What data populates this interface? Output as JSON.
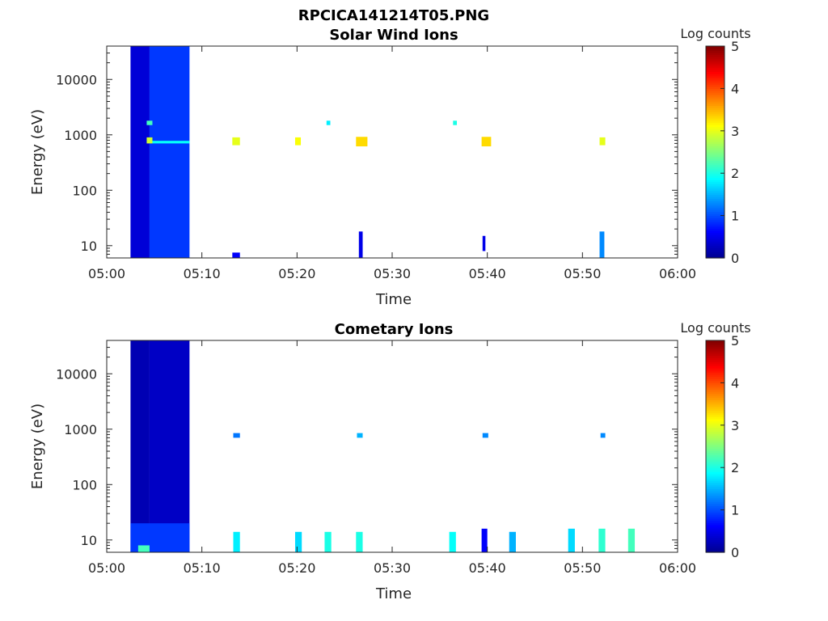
{
  "figure_title": "RPCICA141214T05.PNG",
  "colorbar_label": "Log counts",
  "colorbar_ticks": [
    "0",
    "1",
    "2",
    "3",
    "4",
    "5"
  ],
  "colormap": [
    "#00008f",
    "#0000ff",
    "#0080ff",
    "#00ffff",
    "#80ff80",
    "#ffff00",
    "#ff8000",
    "#ff0000",
    "#800000"
  ],
  "chart_data": [
    {
      "type": "heatmap",
      "title": "Solar Wind Ions",
      "xlabel": "Time",
      "ylabel": "Energy (eV)",
      "x_ticks": [
        "05:00",
        "05:10",
        "05:20",
        "05:30",
        "05:40",
        "05:50",
        "06:00"
      ],
      "y_ticks": [
        "10",
        "100",
        "1000",
        "10000"
      ],
      "y_scale": "log",
      "xlim": [
        "05:00",
        "06:00"
      ],
      "ylim": [
        6,
        40000
      ],
      "clim": [
        0,
        5
      ],
      "cells": [
        {
          "t0": "05:02.5",
          "t1": "05:04.5",
          "e_lo": 6,
          "e_hi": 40000,
          "v": 0.4
        },
        {
          "t0": "05:04.5",
          "t1": "05:08.7",
          "e_lo": 6,
          "e_hi": 40000,
          "v": 0.9
        },
        {
          "t0": "05:04.2",
          "t1": "05:04.8",
          "e_lo": 700,
          "e_hi": 900,
          "v": 2.9
        },
        {
          "t0": "05:04.2",
          "t1": "05:04.8",
          "e_lo": 1500,
          "e_hi": 1800,
          "v": 2.2
        },
        {
          "t0": "05:04.8",
          "t1": "05:08.7",
          "e_lo": 700,
          "e_hi": 780,
          "v": 1.9
        },
        {
          "t0": "05:13.2",
          "t1": "05:14.0",
          "e_lo": 650,
          "e_hi": 900,
          "v": 3.0
        },
        {
          "t0": "05:13.2",
          "t1": "05:14.0",
          "e_lo": 6,
          "e_hi": 7.5,
          "v": 0.6
        },
        {
          "t0": "05:19.8",
          "t1": "05:20.4",
          "e_lo": 650,
          "e_hi": 900,
          "v": 3.1
        },
        {
          "t0": "05:26.2",
          "t1": "05:27.4",
          "e_lo": 620,
          "e_hi": 920,
          "v": 3.3
        },
        {
          "t0": "05:26.5",
          "t1": "05:26.9",
          "e_lo": 6,
          "e_hi": 18,
          "v": 0.5
        },
        {
          "t0": "05:39.4",
          "t1": "05:40.4",
          "e_lo": 620,
          "e_hi": 920,
          "v": 3.3
        },
        {
          "t0": "05:39.5",
          "t1": "05:39.8",
          "e_lo": 8,
          "e_hi": 15,
          "v": 0.5
        },
        {
          "t0": "05:51.8",
          "t1": "05:52.4",
          "e_lo": 650,
          "e_hi": 900,
          "v": 3.0
        },
        {
          "t0": "05:51.8",
          "t1": "05:52.3",
          "e_lo": 6,
          "e_hi": 18,
          "v": 1.3
        },
        {
          "t0": "05:36.4",
          "t1": "05:36.8",
          "e_lo": 1500,
          "e_hi": 1800,
          "v": 2.0
        },
        {
          "t0": "05:23.1",
          "t1": "05:23.5",
          "e_lo": 1500,
          "e_hi": 1800,
          "v": 1.8
        }
      ]
    },
    {
      "type": "heatmap",
      "title": "Cometary Ions",
      "xlabel": "Time",
      "ylabel": "Energy (eV)",
      "x_ticks": [
        "05:00",
        "05:10",
        "05:20",
        "05:30",
        "05:40",
        "05:50",
        "06:00"
      ],
      "y_ticks": [
        "10",
        "100",
        "1000",
        "10000"
      ],
      "y_scale": "log",
      "xlim": [
        "05:00",
        "06:00"
      ],
      "ylim": [
        6,
        40000
      ],
      "clim": [
        0,
        5
      ],
      "cells": [
        {
          "t0": "05:02.5",
          "t1": "05:04.5",
          "e_lo": 6,
          "e_hi": 40000,
          "v": 0.2
        },
        {
          "t0": "05:04.5",
          "t1": "05:08.7",
          "e_lo": 6,
          "e_hi": 40000,
          "v": 0.3
        },
        {
          "t0": "05:02.5",
          "t1": "05:08.7",
          "e_lo": 6,
          "e_hi": 20,
          "v": 0.9
        },
        {
          "t0": "05:03.3",
          "t1": "05:04.5",
          "e_lo": 6,
          "e_hi": 8,
          "v": 2.2
        },
        {
          "t0": "05:13.3",
          "t1": "05:14.0",
          "e_lo": 6,
          "e_hi": 14,
          "v": 1.8
        },
        {
          "t0": "05:19.8",
          "t1": "05:20.5",
          "e_lo": 6,
          "e_hi": 14,
          "v": 1.7
        },
        {
          "t0": "05:22.9",
          "t1": "05:23.6",
          "e_lo": 6,
          "e_hi": 14,
          "v": 2.0
        },
        {
          "t0": "05:26.2",
          "t1": "05:26.9",
          "e_lo": 6,
          "e_hi": 14,
          "v": 2.0
        },
        {
          "t0": "05:36.0",
          "t1": "05:36.7",
          "e_lo": 6,
          "e_hi": 14,
          "v": 1.9
        },
        {
          "t0": "05:39.4",
          "t1": "05:40.0",
          "e_lo": 6,
          "e_hi": 16,
          "v": 0.6
        },
        {
          "t0": "05:42.3",
          "t1": "05:43.0",
          "e_lo": 6,
          "e_hi": 14,
          "v": 1.5
        },
        {
          "t0": "05:48.5",
          "t1": "05:49.2",
          "e_lo": 6,
          "e_hi": 16,
          "v": 1.7
        },
        {
          "t0": "05:51.7",
          "t1": "05:52.4",
          "e_lo": 6,
          "e_hi": 16,
          "v": 2.1
        },
        {
          "t0": "05:54.8",
          "t1": "05:55.5",
          "e_lo": 6,
          "e_hi": 16,
          "v": 2.2
        },
        {
          "t0": "05:13.3",
          "t1": "05:14.0",
          "e_lo": 700,
          "e_hi": 850,
          "v": 1.2
        },
        {
          "t0": "05:26.3",
          "t1": "05:26.9",
          "e_lo": 700,
          "e_hi": 850,
          "v": 1.5
        },
        {
          "t0": "05:39.5",
          "t1": "05:40.1",
          "e_lo": 700,
          "e_hi": 850,
          "v": 1.3
        },
        {
          "t0": "05:51.9",
          "t1": "05:52.4",
          "e_lo": 700,
          "e_hi": 850,
          "v": 1.3
        }
      ]
    }
  ]
}
